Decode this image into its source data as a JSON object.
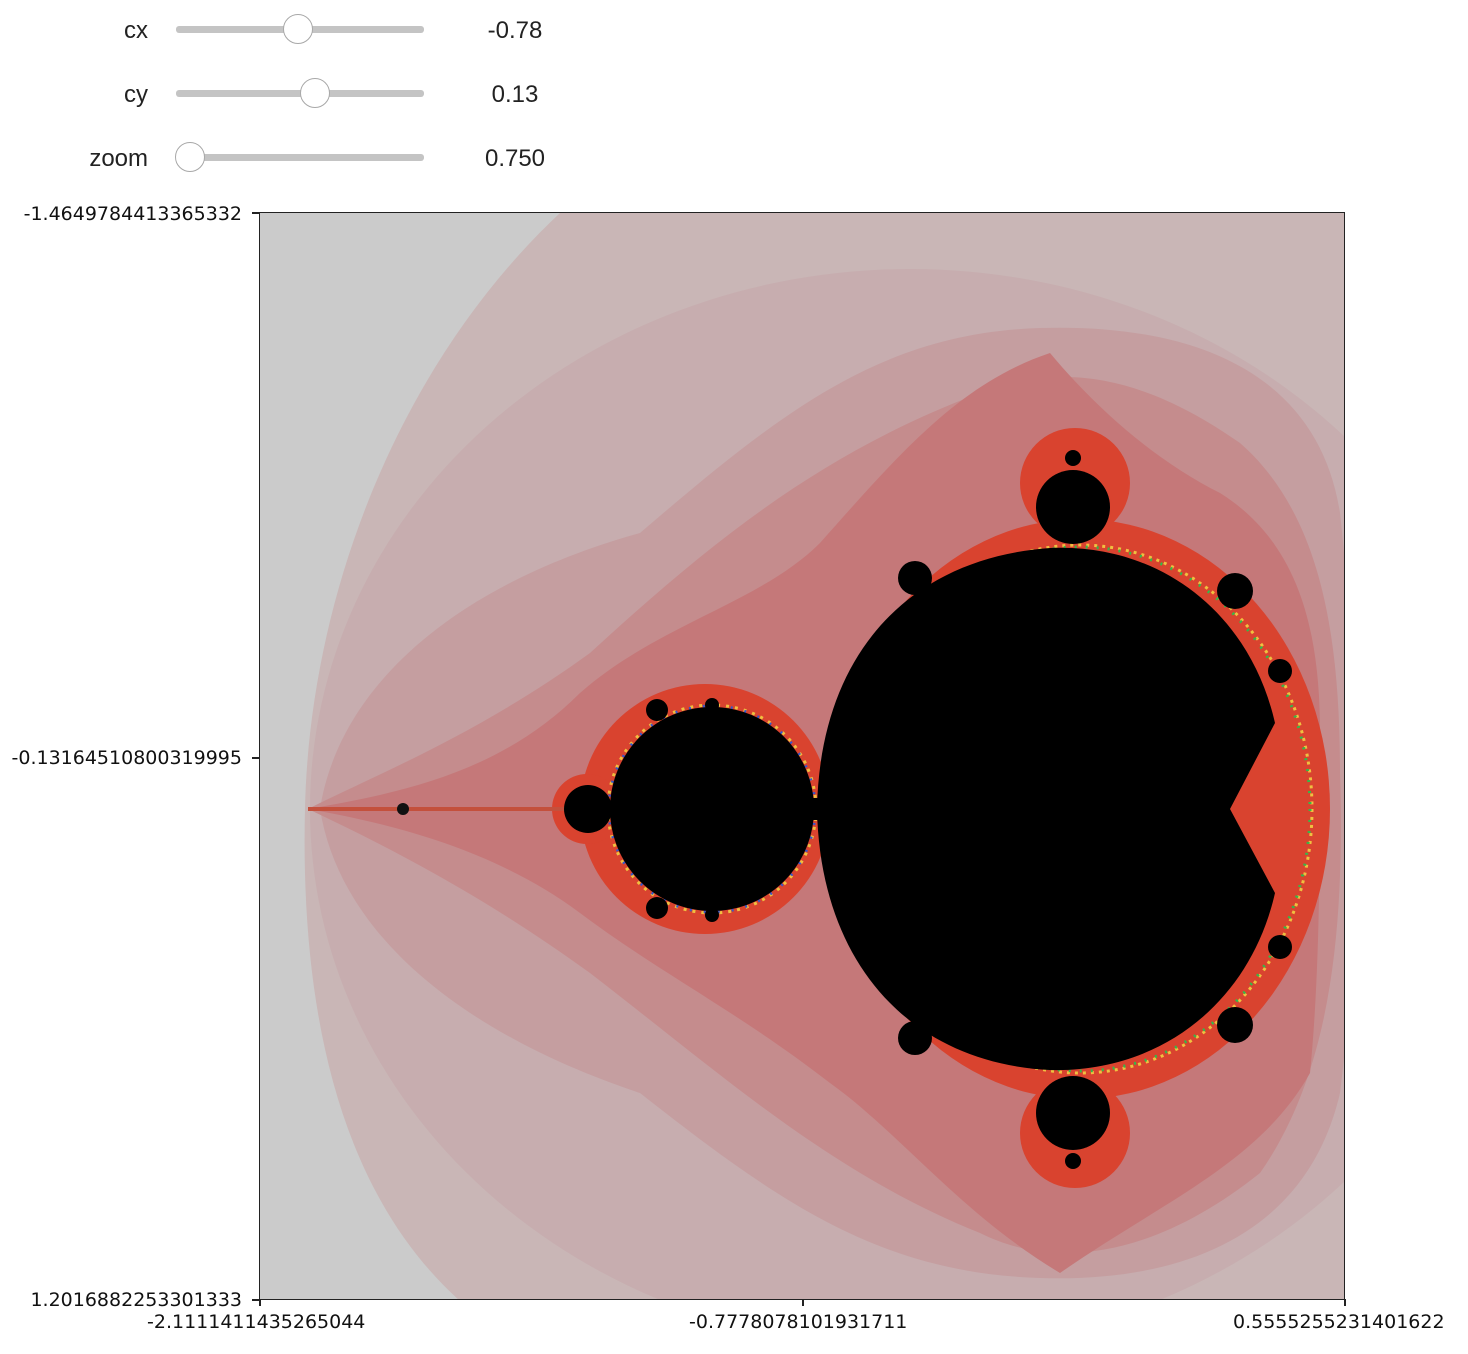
{
  "controls": [
    {
      "label": "cx",
      "value": "-0.78",
      "min": -2.0,
      "max": 2.0,
      "current": -0.78
    },
    {
      "label": "cy",
      "value": "0.13",
      "min": -2.0,
      "max": 2.0,
      "current": 0.13
    },
    {
      "label": "zoom",
      "value": "0.750",
      "min": 0.75,
      "max": 50.0,
      "current": 0.75
    }
  ],
  "plot": {
    "y_tick_labels": [
      "-1.4649784413365332",
      "-0.13164510800319995",
      "1.2016882253301333"
    ],
    "x_tick_labels": [
      "-2.1111411435265044",
      "-0.7778078101931711",
      "0.5555255231401622"
    ]
  },
  "colors": {
    "set_interior": "#000000",
    "outer_background": "#cbcbcb",
    "band_light": "#c9b6b6",
    "band_mid": "#c99a9a",
    "band_dark": "#c27474",
    "boundary_red": "#e03a24"
  }
}
